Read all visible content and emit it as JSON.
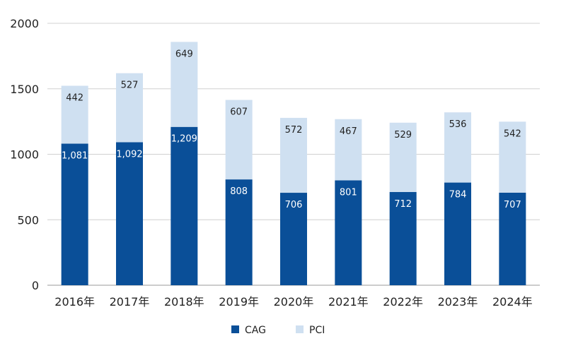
{
  "chart_data": {
    "type": "bar",
    "stacked": true,
    "categories": [
      "2016年",
      "2017年",
      "2018年",
      "2019年",
      "2020年",
      "2021年",
      "2022年",
      "2023年",
      "2024年"
    ],
    "series": [
      {
        "name": "CAG",
        "color": "#0a4f98",
        "label_color": "#ffffff",
        "values": [
          1081,
          1092,
          1209,
          808,
          706,
          801,
          712,
          784,
          707
        ],
        "labels": [
          "1,081",
          "1,092",
          "1,209",
          "808",
          "706",
          "801",
          "712",
          "784",
          "707"
        ]
      },
      {
        "name": "PCI",
        "color": "#cfe0f1",
        "label_color": "#222222",
        "values": [
          442,
          527,
          649,
          607,
          572,
          467,
          529,
          536,
          542
        ],
        "labels": [
          "442",
          "527",
          "649",
          "607",
          "572",
          "467",
          "529",
          "536",
          "542"
        ]
      }
    ],
    "y_ticks": [
      0,
      500,
      1000,
      1500,
      2000
    ],
    "y_tick_labels": [
      "0",
      "500",
      "1000",
      "1500",
      "2000"
    ],
    "ylim": [
      0,
      2000
    ],
    "grid": true,
    "legend_position": "bottom-center"
  }
}
